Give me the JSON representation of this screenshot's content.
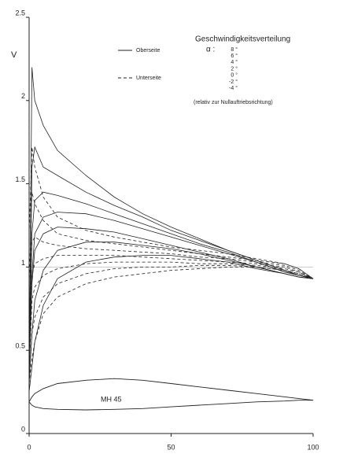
{
  "chart_data": {
    "type": "line",
    "title": "Geschwindigkeitsverteilung",
    "alpha_label": "α :",
    "alphas": [
      "8 °",
      "6 °",
      "4 °",
      "2 °",
      "0 °",
      "-2 °",
      "-4 °"
    ],
    "note": "(relativ zur Nullauftriebsrichtung)",
    "y_label": "V",
    "x": [
      0,
      1,
      2,
      5,
      10,
      20,
      30,
      40,
      50,
      60,
      70,
      80,
      90,
      95,
      100
    ],
    "xlim": [
      0,
      100
    ],
    "xticks": [
      0,
      50,
      100
    ],
    "ylim": [
      0,
      2.5
    ],
    "yticks": [
      0,
      0.5,
      1,
      1.5,
      2,
      2.5
    ],
    "reference_line": 1,
    "color": "#222222",
    "upper": {
      "name": "Oberseite",
      "dash": false,
      "curves": [
        [
          0.3,
          2.2,
          2.0,
          1.85,
          1.7,
          1.55,
          1.42,
          1.32,
          1.24,
          1.17,
          1.1,
          1.04,
          0.98,
          0.95,
          0.93
        ],
        [
          0.3,
          1.6,
          1.72,
          1.6,
          1.55,
          1.45,
          1.37,
          1.3,
          1.22,
          1.16,
          1.1,
          1.04,
          0.98,
          0.95,
          0.93
        ],
        [
          0.35,
          1.2,
          1.4,
          1.45,
          1.43,
          1.38,
          1.32,
          1.26,
          1.2,
          1.14,
          1.09,
          1.03,
          0.97,
          0.95,
          0.93
        ],
        [
          0.4,
          0.95,
          1.2,
          1.3,
          1.33,
          1.32,
          1.28,
          1.23,
          1.18,
          1.13,
          1.08,
          1.03,
          0.97,
          0.95,
          0.93
        ],
        [
          0.35,
          0.9,
          1.1,
          1.2,
          1.24,
          1.23,
          1.21,
          1.17,
          1.13,
          1.09,
          1.05,
          1.0,
          0.96,
          0.94,
          0.93
        ],
        [
          0.3,
          0.6,
          0.8,
          0.98,
          1.1,
          1.15,
          1.15,
          1.13,
          1.11,
          1.08,
          1.04,
          1.0,
          0.96,
          0.94,
          0.93
        ],
        [
          0.25,
          0.4,
          0.55,
          0.77,
          0.93,
          1.03,
          1.06,
          1.07,
          1.07,
          1.05,
          1.03,
          0.99,
          0.96,
          0.94,
          0.93
        ]
      ]
    },
    "lower": {
      "name": "Unterseite",
      "dash": true,
      "curves": [
        [
          0.3,
          0.45,
          0.55,
          0.72,
          0.82,
          0.9,
          0.94,
          0.96,
          0.98,
          0.99,
          1.0,
          1.0,
          0.98,
          0.96,
          0.93
        ],
        [
          0.3,
          0.6,
          0.7,
          0.82,
          0.9,
          0.96,
          0.99,
          1.0,
          1.0,
          1.01,
          1.01,
          1.0,
          0.98,
          0.96,
          0.93
        ],
        [
          0.35,
          0.8,
          0.88,
          0.95,
          0.99,
          1.02,
          1.03,
          1.03,
          1.03,
          1.02,
          1.02,
          1.01,
          0.99,
          0.97,
          0.93
        ],
        [
          0.5,
          0.95,
          1.02,
          1.05,
          1.07,
          1.07,
          1.07,
          1.06,
          1.05,
          1.04,
          1.03,
          1.02,
          1.0,
          0.97,
          0.93
        ],
        [
          0.7,
          1.15,
          1.18,
          1.15,
          1.13,
          1.11,
          1.1,
          1.09,
          1.08,
          1.06,
          1.05,
          1.03,
          1.01,
          0.98,
          0.93
        ],
        [
          0.9,
          1.45,
          1.38,
          1.28,
          1.2,
          1.16,
          1.14,
          1.12,
          1.1,
          1.08,
          1.06,
          1.04,
          1.02,
          0.99,
          0.93
        ],
        [
          1.2,
          1.72,
          1.6,
          1.42,
          1.3,
          1.22,
          1.18,
          1.15,
          1.12,
          1.1,
          1.08,
          1.05,
          1.02,
          0.99,
          0.93
        ]
      ]
    },
    "airfoil": {
      "label": "MH 45",
      "upper": [
        0.19,
        0.22,
        0.24,
        0.27,
        0.3,
        0.32,
        0.33,
        0.32,
        0.3,
        0.28,
        0.26,
        0.24,
        0.22,
        0.21,
        0.2
      ],
      "lower": [
        0.19,
        0.17,
        0.16,
        0.15,
        0.145,
        0.142,
        0.145,
        0.15,
        0.16,
        0.17,
        0.18,
        0.19,
        0.195,
        0.2,
        0.2
      ]
    }
  }
}
